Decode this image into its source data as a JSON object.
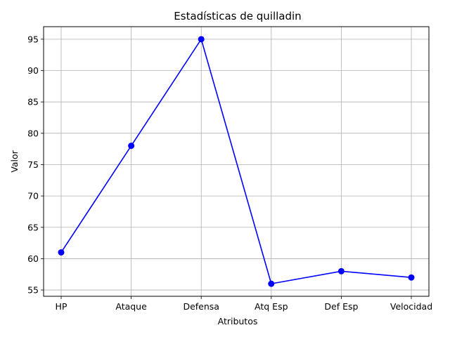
{
  "chart_data": {
    "type": "line",
    "title": "Estadísticas de quilladin",
    "xlabel": "Atributos",
    "ylabel": "Valor",
    "categories": [
      "HP",
      "Ataque",
      "Defensa",
      "Atq Esp",
      "Def Esp",
      "Velocidad"
    ],
    "series": [
      {
        "values": [
          61,
          78,
          95,
          56,
          58,
          57
        ]
      }
    ],
    "ylim": [
      54,
      97
    ],
    "yticks": [
      55,
      60,
      65,
      70,
      75,
      80,
      85,
      90,
      95
    ],
    "grid": true,
    "line_color": "#0000ff",
    "marker": "circle"
  }
}
